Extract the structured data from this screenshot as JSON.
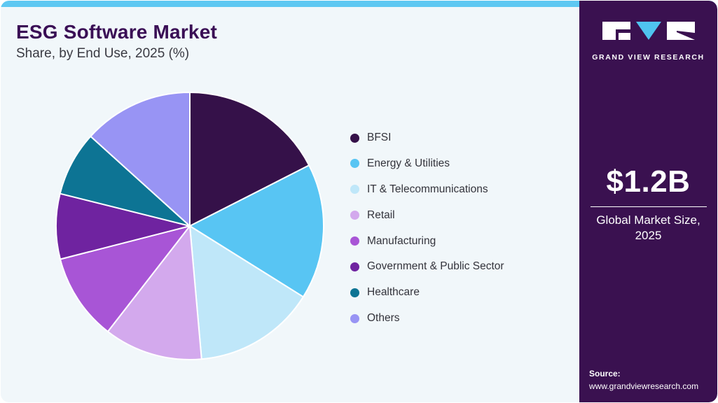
{
  "header": {
    "title": "ESG Software Market",
    "subtitle": "Share, by End Use, 2025 (%)"
  },
  "chart_data": {
    "type": "pie",
    "title": "ESG Software Market Share, by End Use, 2025 (%)",
    "unit": "%",
    "start_angle_deg_from_top": 0,
    "direction": "clockwise",
    "legend_position": "right",
    "values_estimated_from_angles": true,
    "segments": [
      {
        "label": "BFSI",
        "value": 17.5,
        "color": "#351149"
      },
      {
        "label": "Energy & Utilities",
        "value": 16.4,
        "color": "#58c5f3"
      },
      {
        "label": "IT & Telecommunications",
        "value": 14.7,
        "color": "#bfe7f9"
      },
      {
        "label": "Retail",
        "value": 11.9,
        "color": "#d3a9ed"
      },
      {
        "label": "Manufacturing",
        "value": 10.5,
        "color": "#a855d6"
      },
      {
        "label": "Government & Public Sector",
        "value": 7.9,
        "color": "#6f23a0"
      },
      {
        "label": "Healthcare",
        "value": 7.8,
        "color": "#0d7494"
      },
      {
        "label": "Others",
        "value": 13.3,
        "color": "#9894f4"
      }
    ]
  },
  "sidebar": {
    "brand": "GRAND VIEW RESEARCH",
    "market_size": {
      "value": "$1.2B",
      "label_line1": "Global Market Size,",
      "label_line2": "2025"
    },
    "source": {
      "label": "Source:",
      "url": "www.grandviewresearch.com"
    }
  },
  "colors": {
    "card_background": "#f1f7fa",
    "topbar": "#5ec8f2",
    "panel": "#3a1150",
    "title_text": "#3a0e55",
    "subtitle_text": "#3a3a42",
    "legend_text": "#33333b",
    "logo_triangle": "#4fc3ef",
    "slice_stroke": "#ffffff"
  }
}
